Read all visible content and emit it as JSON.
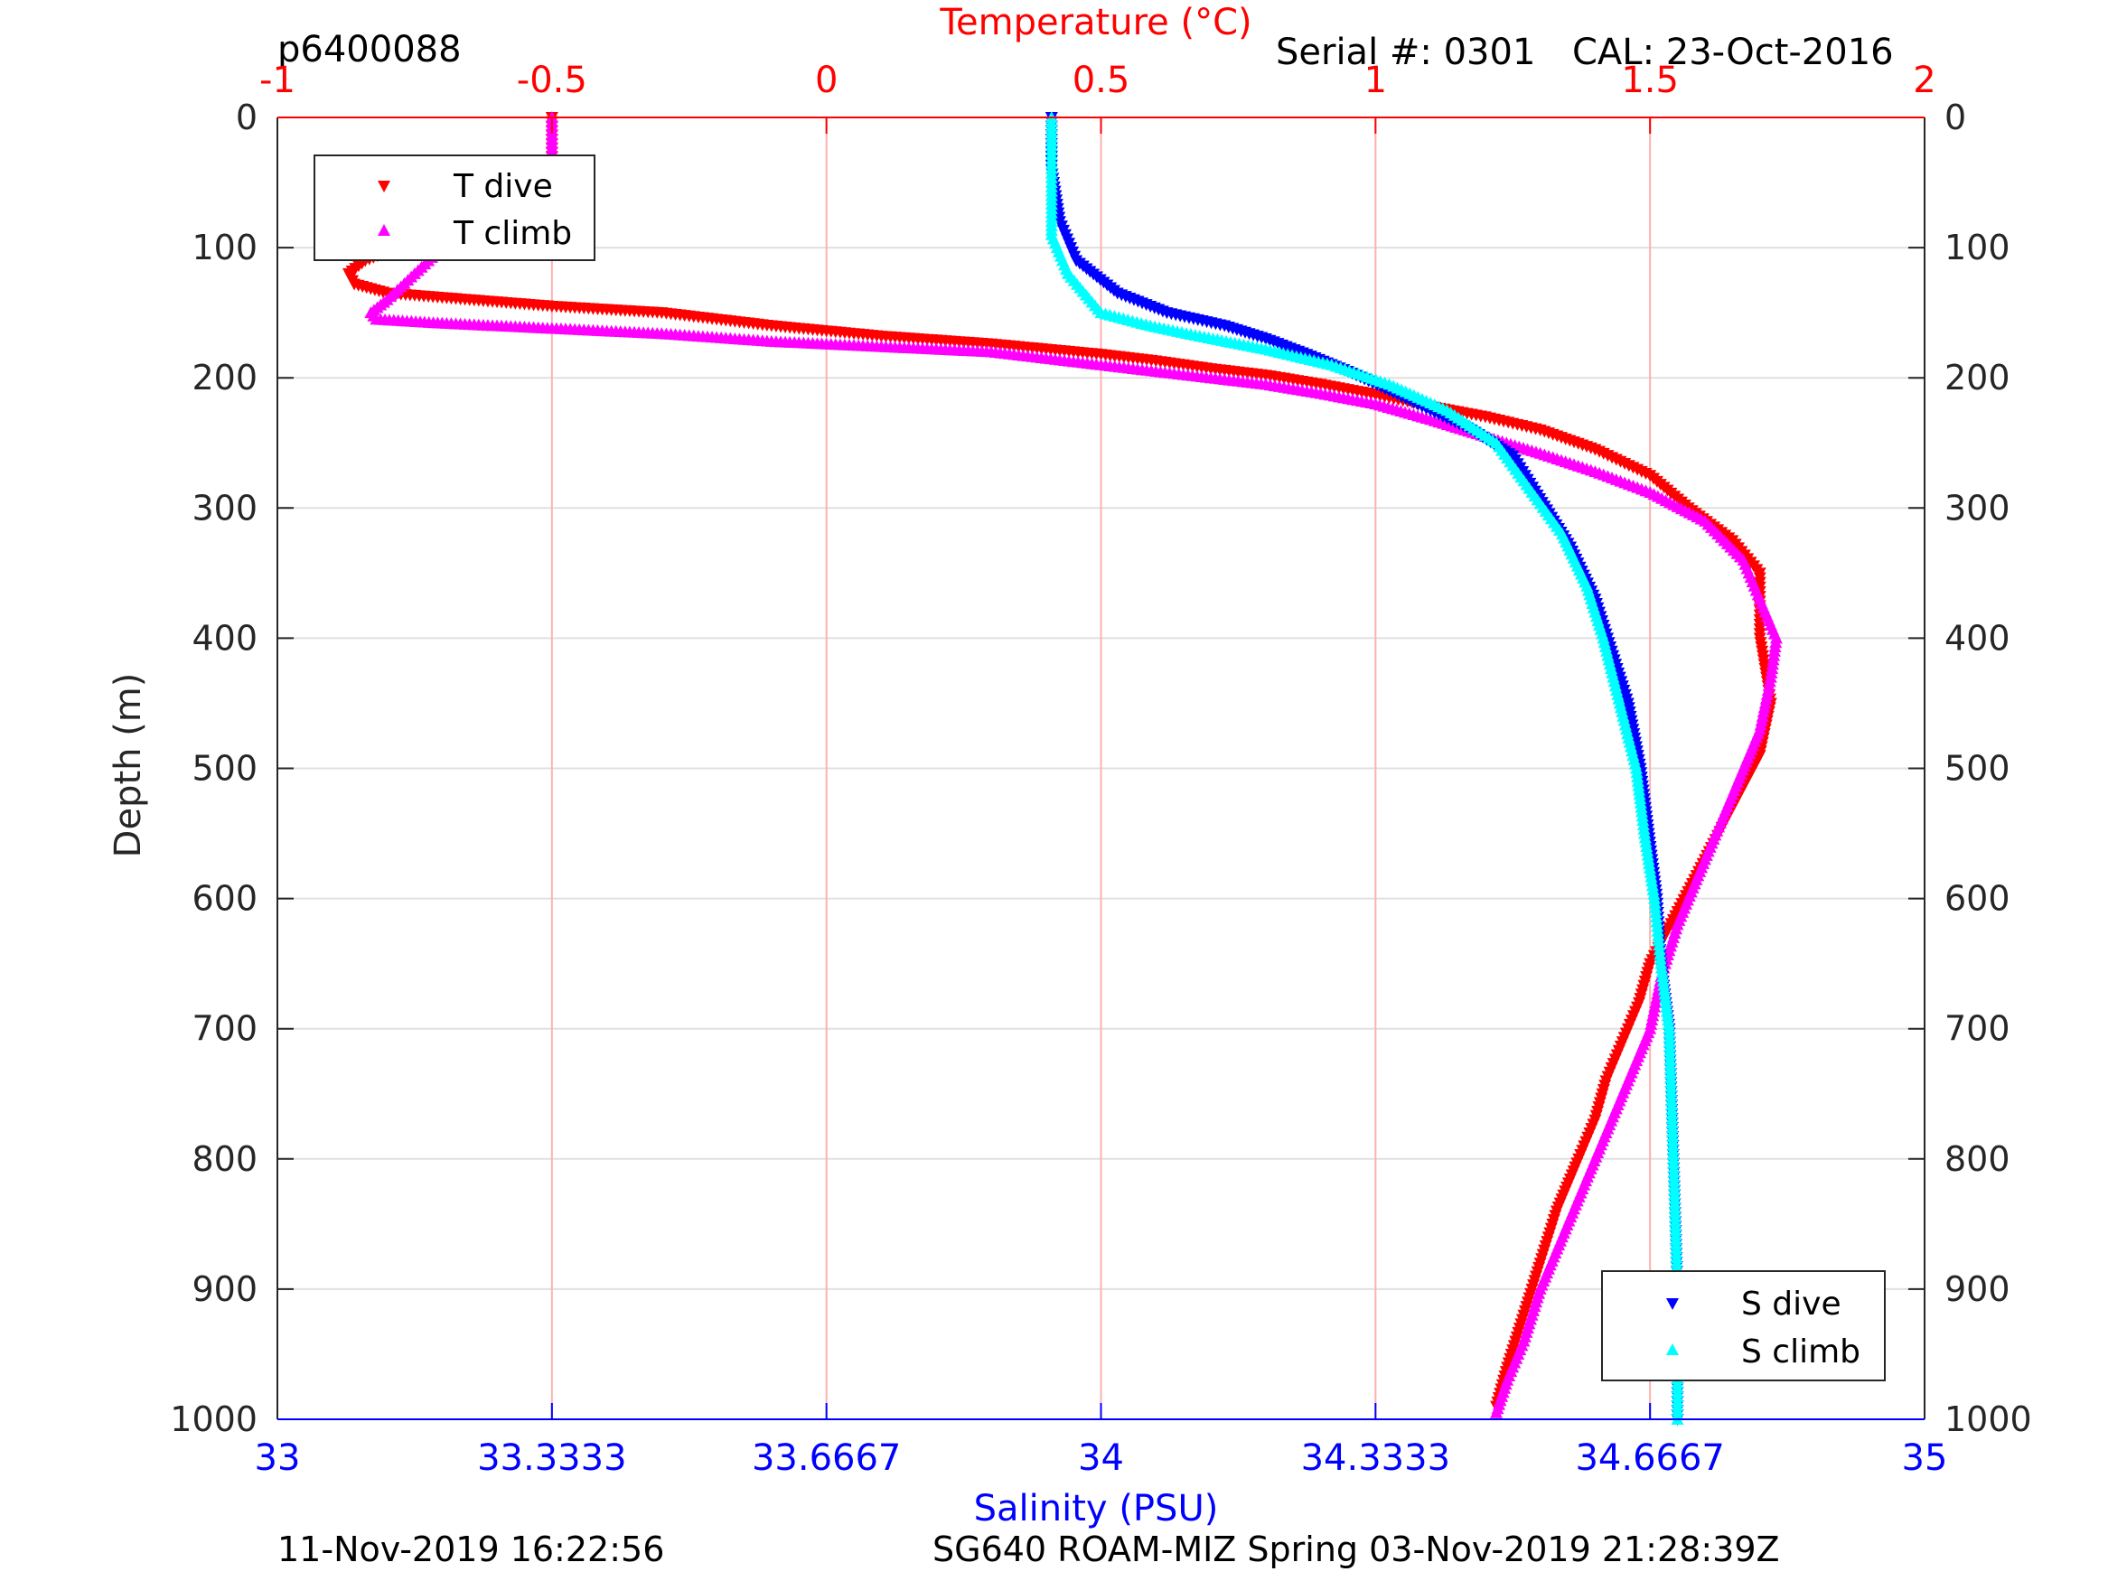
{
  "header": {
    "left_id": "p6400088",
    "serial": "Serial #: 0301",
    "cal": "CAL: 23-Oct-2016"
  },
  "footer": {
    "timestamp": "11-Nov-2019 16:22:56",
    "mission": "SG640 ROAM-MIZ Spring 03-Nov-2019 21:28:39Z"
  },
  "colors": {
    "temp_axis": "#ff0000",
    "sal_axis": "#0000ff",
    "t_dive": "#ff0000",
    "t_climb": "#ff00ff",
    "s_dive": "#0000ff",
    "s_climb": "#00ffff",
    "grid": "#e0e0e0",
    "temp_grid": "#ffb0b0"
  },
  "chart_data": {
    "type": "scatter",
    "title": "",
    "ylabel": "Depth (m)",
    "ylim": [
      0,
      1000
    ],
    "y_reversed": true,
    "y_ticks": [
      "0",
      "100",
      "200",
      "300",
      "400",
      "500",
      "600",
      "700",
      "800",
      "900",
      "1000"
    ],
    "temperature_axis": {
      "label": "Temperature (°C)",
      "position": "top",
      "range": [
        -1,
        2
      ],
      "ticks": [
        "-1",
        "-0.5",
        "0",
        "0.5",
        "1",
        "1.5",
        "2"
      ]
    },
    "salinity_axis": {
      "label": "Salinity (PSU)",
      "position": "bottom",
      "range": [
        33,
        35
      ],
      "ticks": [
        "33",
        "33.3333",
        "33.6667",
        "34",
        "34.3333",
        "34.6667",
        "35"
      ]
    },
    "legend_temperature": {
      "position": "top-left",
      "entries": [
        "T dive",
        "T climb"
      ]
    },
    "legend_salinity": {
      "position": "bottom-right",
      "entries": [
        "S dive",
        "S climb"
      ]
    },
    "grid": true,
    "series": [
      {
        "name": "T dive",
        "axis": "temperature",
        "marker": "triangle-down",
        "points": [
          [
            -0.5,
            0
          ],
          [
            -0.5,
            30
          ],
          [
            -0.51,
            60
          ],
          [
            -0.6,
            80
          ],
          [
            -0.7,
            90
          ],
          [
            -0.78,
            100
          ],
          [
            -0.84,
            110
          ],
          [
            -0.87,
            120
          ],
          [
            -0.86,
            128
          ],
          [
            -0.8,
            135
          ],
          [
            -0.65,
            140
          ],
          [
            -0.5,
            145
          ],
          [
            -0.3,
            150
          ],
          [
            -0.1,
            160
          ],
          [
            0.1,
            168
          ],
          [
            0.3,
            174
          ],
          [
            0.4,
            178
          ],
          [
            0.5,
            182
          ],
          [
            0.6,
            187
          ],
          [
            0.7,
            193
          ],
          [
            0.8,
            198
          ],
          [
            0.9,
            205
          ],
          [
            1.0,
            213
          ],
          [
            1.1,
            222
          ],
          [
            1.2,
            230
          ],
          [
            1.3,
            240
          ],
          [
            1.4,
            255
          ],
          [
            1.5,
            275
          ],
          [
            1.57,
            300
          ],
          [
            1.65,
            325
          ],
          [
            1.7,
            350
          ],
          [
            1.7,
            400
          ],
          [
            1.72,
            450
          ],
          [
            1.7,
            490
          ],
          [
            1.65,
            530
          ],
          [
            1.6,
            570
          ],
          [
            1.55,
            610
          ],
          [
            1.5,
            650
          ],
          [
            1.48,
            680
          ],
          [
            1.45,
            710
          ],
          [
            1.42,
            740
          ],
          [
            1.4,
            770
          ],
          [
            1.37,
            800
          ],
          [
            1.33,
            840
          ],
          [
            1.3,
            880
          ],
          [
            1.27,
            920
          ],
          [
            1.24,
            960
          ],
          [
            1.22,
            990
          ]
        ]
      },
      {
        "name": "T climb",
        "axis": "temperature",
        "marker": "triangle-up",
        "points": [
          [
            -0.5,
            0
          ],
          [
            -0.5,
            40
          ],
          [
            -0.5,
            70
          ],
          [
            -0.52,
            80
          ],
          [
            -0.6,
            90
          ],
          [
            -0.7,
            100
          ],
          [
            -0.75,
            120
          ],
          [
            -0.8,
            140
          ],
          [
            -0.83,
            150
          ],
          [
            -0.82,
            155
          ],
          [
            -0.7,
            158
          ],
          [
            -0.5,
            162
          ],
          [
            -0.3,
            166
          ],
          [
            -0.1,
            172
          ],
          [
            0.1,
            176
          ],
          [
            0.3,
            180
          ],
          [
            0.4,
            185
          ],
          [
            0.5,
            190
          ],
          [
            0.6,
            195
          ],
          [
            0.7,
            200
          ],
          [
            0.8,
            205
          ],
          [
            0.9,
            212
          ],
          [
            1.0,
            220
          ],
          [
            1.1,
            232
          ],
          [
            1.2,
            245
          ],
          [
            1.3,
            258
          ],
          [
            1.4,
            272
          ],
          [
            1.5,
            288
          ],
          [
            1.6,
            310
          ],
          [
            1.67,
            340
          ],
          [
            1.7,
            370
          ],
          [
            1.73,
            400
          ],
          [
            1.72,
            430
          ],
          [
            1.7,
            470
          ],
          [
            1.65,
            520
          ],
          [
            1.6,
            570
          ],
          [
            1.55,
            620
          ],
          [
            1.52,
            660
          ],
          [
            1.5,
            700
          ],
          [
            1.46,
            740
          ],
          [
            1.42,
            780
          ],
          [
            1.38,
            820
          ],
          [
            1.34,
            860
          ],
          [
            1.3,
            900
          ],
          [
            1.27,
            940
          ],
          [
            1.24,
            970
          ],
          [
            1.22,
            995
          ]
        ]
      },
      {
        "name": "S dive",
        "axis": "salinity",
        "marker": "triangle-down",
        "points": [
          [
            33.94,
            0
          ],
          [
            33.94,
            40
          ],
          [
            33.95,
            80
          ],
          [
            33.97,
            110
          ],
          [
            34.02,
            135
          ],
          [
            34.08,
            150
          ],
          [
            34.15,
            160
          ],
          [
            34.2,
            170
          ],
          [
            34.25,
            182
          ],
          [
            34.3,
            195
          ],
          [
            34.35,
            210
          ],
          [
            34.4,
            225
          ],
          [
            34.45,
            240
          ],
          [
            34.5,
            260
          ],
          [
            34.53,
            290
          ],
          [
            34.57,
            330
          ],
          [
            34.6,
            370
          ],
          [
            34.62,
            410
          ],
          [
            34.64,
            450
          ],
          [
            34.655,
            500
          ],
          [
            34.665,
            550
          ],
          [
            34.675,
            600
          ],
          [
            34.68,
            650
          ],
          [
            34.69,
            700
          ],
          [
            34.695,
            800
          ],
          [
            34.7,
            900
          ],
          [
            34.7,
            1000
          ]
        ]
      },
      {
        "name": "S climb",
        "axis": "salinity",
        "marker": "triangle-up",
        "points": [
          [
            33.94,
            0
          ],
          [
            33.94,
            50
          ],
          [
            33.94,
            90
          ],
          [
            33.96,
            120
          ],
          [
            34.0,
            150
          ],
          [
            34.06,
            160
          ],
          [
            34.12,
            168
          ],
          [
            34.2,
            178
          ],
          [
            34.28,
            190
          ],
          [
            34.35,
            205
          ],
          [
            34.42,
            225
          ],
          [
            34.48,
            250
          ],
          [
            34.52,
            285
          ],
          [
            34.56,
            320
          ],
          [
            34.59,
            360
          ],
          [
            34.61,
            400
          ],
          [
            34.63,
            450
          ],
          [
            34.65,
            500
          ],
          [
            34.66,
            550
          ],
          [
            34.672,
            600
          ],
          [
            34.68,
            650
          ],
          [
            34.69,
            700
          ],
          [
            34.695,
            800
          ],
          [
            34.7,
            900
          ],
          [
            34.7,
            1000
          ]
        ]
      }
    ]
  }
}
